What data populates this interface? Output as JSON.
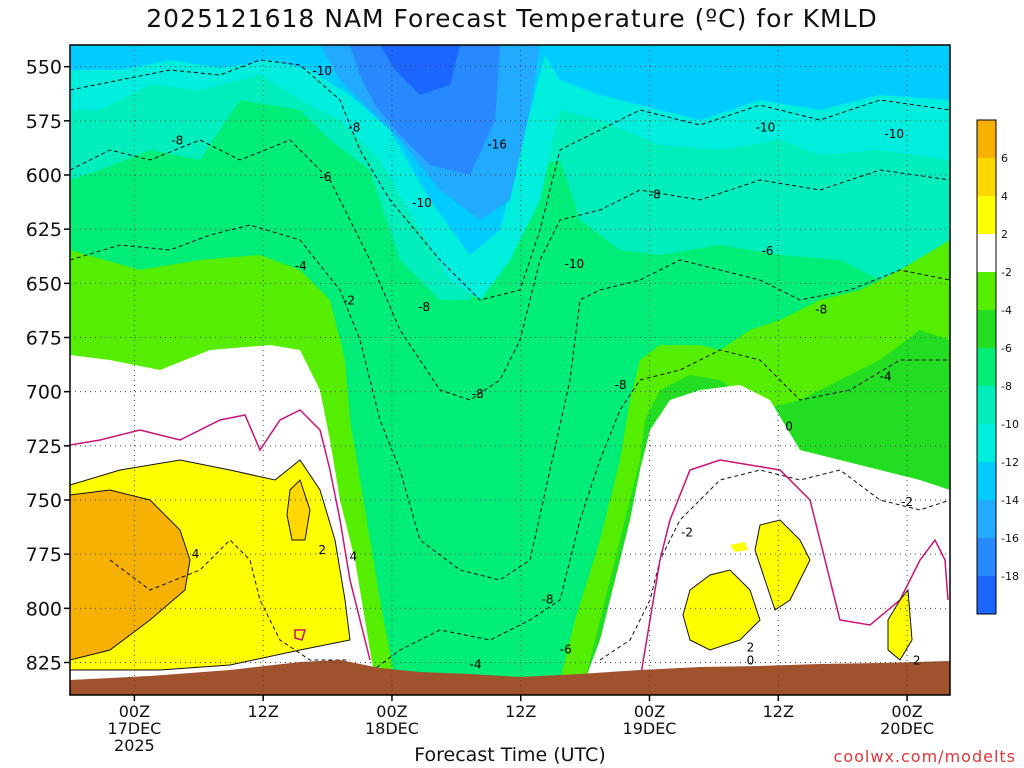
{
  "chart_data": {
    "type": "heatmap",
    "title": "2025121618 NAM Forecast Temperature (ºC) for KMLD",
    "xlabel": "Forecast Time (UTC)",
    "ylabel": "",
    "credit": "coolwx.com/modelts",
    "y_ticks": [
      "550",
      "575",
      "600",
      "625",
      "650",
      "675",
      "700",
      "725",
      "750",
      "775",
      "800",
      "825"
    ],
    "ylim": [
      540,
      840
    ],
    "x_ticks": [
      {
        "hour": 0,
        "label": [
          "00Z",
          "17DEC",
          "2025"
        ]
      },
      {
        "hour": 12,
        "label": [
          "12Z"
        ]
      },
      {
        "hour": 24,
        "label": [
          "00Z",
          "18DEC"
        ]
      },
      {
        "hour": 36,
        "label": [
          "12Z"
        ]
      },
      {
        "hour": 48,
        "label": [
          "00Z",
          "19DEC"
        ]
      },
      {
        "hour": 60,
        "label": [
          "12Z"
        ]
      },
      {
        "hour": 72,
        "label": [
          "00Z",
          "20DEC"
        ]
      }
    ],
    "colorbar": {
      "labels": [
        "6",
        "4",
        "2",
        "-2",
        "-4",
        "-6",
        "-8",
        "-10",
        "-12",
        "-14",
        "-16",
        "-18"
      ],
      "colors": [
        "#f5b000",
        "#ffd800",
        "#ffff00",
        "#ffffff",
        "#55ee00",
        "#22dd22",
        "#00ee77",
        "#00eebb",
        "#00eedd",
        "#00ccff",
        "#22aaff",
        "#2888ff",
        "#1a66ff"
      ]
    },
    "contour_labels": [
      {
        "text": "-10",
        "t": 17.5,
        "p": 552
      },
      {
        "text": "-8",
        "t": 4.0,
        "p": 584
      },
      {
        "text": "-8",
        "t": 20.5,
        "p": 578
      },
      {
        "text": "-16",
        "t": 33.8,
        "p": 586
      },
      {
        "text": "-10",
        "t": 58.8,
        "p": 578
      },
      {
        "text": "-10",
        "t": 70.8,
        "p": 581
      },
      {
        "text": "-6",
        "t": 17.8,
        "p": 601
      },
      {
        "text": "-8",
        "t": 48.5,
        "p": 609
      },
      {
        "text": "-10",
        "t": 26.8,
        "p": 613
      },
      {
        "text": "-4",
        "t": 15.5,
        "p": 642
      },
      {
        "text": "-10",
        "t": 41.0,
        "p": 641
      },
      {
        "text": "-6",
        "t": 59.0,
        "p": 635
      },
      {
        "text": "-2",
        "t": 20.0,
        "p": 658
      },
      {
        "text": "-8",
        "t": 27.0,
        "p": 661
      },
      {
        "text": "-8",
        "t": 64.0,
        "p": 662
      },
      {
        "text": "-4",
        "t": 70.0,
        "p": 693
      },
      {
        "text": "-8",
        "t": 45.3,
        "p": 697
      },
      {
        "text": "-8",
        "t": 32.0,
        "p": 701
      },
      {
        "text": "0",
        "t": 61.0,
        "p": 716
      },
      {
        "text": "-2",
        "t": 51.5,
        "p": 765
      },
      {
        "text": "-2",
        "t": 72.0,
        "p": 751
      },
      {
        "text": "2",
        "t": 17.5,
        "p": 773
      },
      {
        "text": "4",
        "t": 5.7,
        "p": 775
      },
      {
        "text": "4",
        "t": 20.4,
        "p": 776
      },
      {
        "text": "-8",
        "t": 38.5,
        "p": 796
      },
      {
        "text": "-6",
        "t": 40.2,
        "p": 819
      },
      {
        "text": "-4",
        "t": 31.8,
        "p": 826
      },
      {
        "text": "2",
        "t": 57.4,
        "p": 818
      },
      {
        "text": "0",
        "t": 57.4,
        "p": 824
      },
      {
        "text": "2",
        "t": 72.9,
        "p": 824
      }
    ]
  }
}
